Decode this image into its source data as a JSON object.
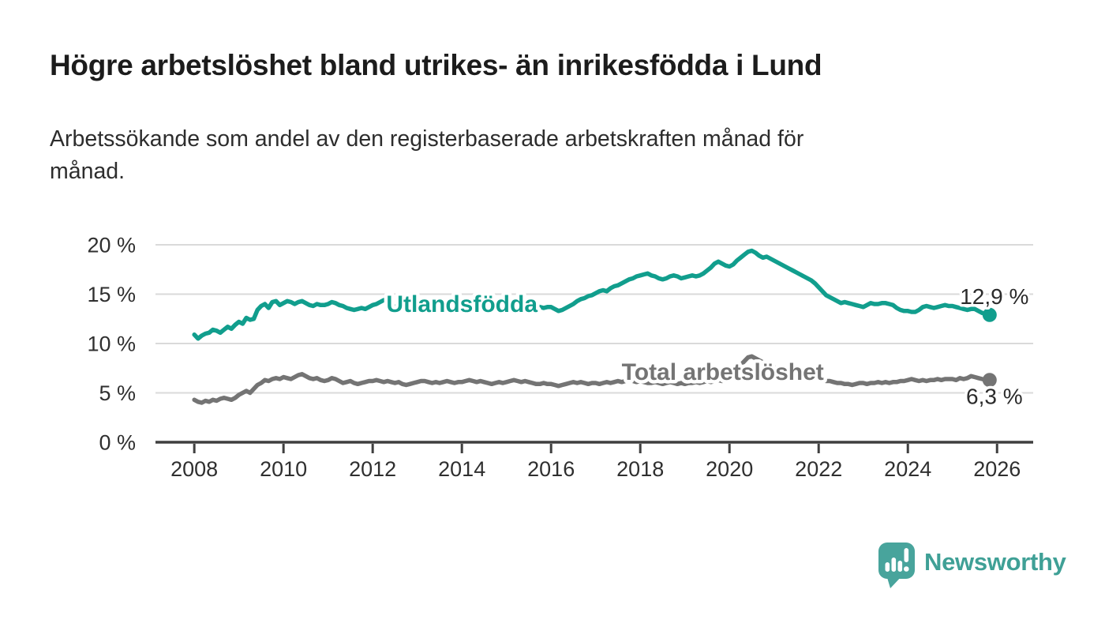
{
  "footer": {
    "brand": "Newsworthy",
    "brand_color": "#48a49c"
  },
  "chart_data": {
    "type": "line",
    "title": "Högre arbetslöshet bland utrikes- än inrikesfödda i Lund",
    "subtitle_lines": [
      "Arbetssökande som andel av den registerbaserade arbetskraften månad för",
      "månad."
    ],
    "grid": "horizontal",
    "legend_position": "inline-labels",
    "x_axis": {
      "range": [
        2007.13,
        2026.81
      ],
      "ticks": [
        2008,
        2010,
        2012,
        2014,
        2016,
        2018,
        2020,
        2022,
        2024,
        2026
      ]
    },
    "y_axis": {
      "range": [
        0,
        20.6
      ],
      "ticks": [
        0,
        5,
        10,
        15,
        20
      ],
      "suffix": " %"
    },
    "colors": {
      "gridline": "#dadada",
      "axis": "#3f3f3f",
      "tick_text": "#2f2f2f",
      "value_label_text": "#2b2b2b"
    },
    "series": [
      {
        "name": "Utlandsfödda",
        "color": "#119e8d",
        "start_year": 2008,
        "interval_months": 1,
        "end_value_label": "12,9 %",
        "end_label_offset": [
          6,
          -14
        ],
        "name_label_at": [
          2014.0,
          14.05
        ],
        "values": [
          10.9,
          10.5,
          10.8,
          11.0,
          11.1,
          11.4,
          11.3,
          11.1,
          11.4,
          11.7,
          11.5,
          11.9,
          12.2,
          12.0,
          12.6,
          12.4,
          12.5,
          13.4,
          13.8,
          14.0,
          13.6,
          14.2,
          14.3,
          13.9,
          14.1,
          14.3,
          14.2,
          14.0,
          14.2,
          14.3,
          14.1,
          13.9,
          13.8,
          14.0,
          13.9,
          13.9,
          14.0,
          14.2,
          14.1,
          13.9,
          13.8,
          13.6,
          13.5,
          13.4,
          13.5,
          13.6,
          13.5,
          13.7,
          13.9,
          14.0,
          14.2,
          14.4,
          14.3,
          14.1,
          13.6,
          13.5,
          13.4,
          13.5,
          13.4,
          13.5,
          13.6,
          13.7,
          13.8,
          13.9,
          13.8,
          13.7,
          13.6,
          13.5,
          13.6,
          13.7,
          13.6,
          13.5,
          13.8,
          13.9,
          14.0,
          13.9,
          13.8,
          13.7,
          13.8,
          13.7,
          13.6,
          13.7,
          13.8,
          13.7,
          13.8,
          13.9,
          14.0,
          13.9,
          13.8,
          13.9,
          13.8,
          13.7,
          13.8,
          13.7,
          13.6,
          13.7,
          13.7,
          13.5,
          13.3,
          13.4,
          13.6,
          13.8,
          14.0,
          14.3,
          14.5,
          14.6,
          14.8,
          14.9,
          15.1,
          15.3,
          15.4,
          15.3,
          15.6,
          15.8,
          15.9,
          16.1,
          16.3,
          16.5,
          16.6,
          16.8,
          16.9,
          17.0,
          17.1,
          16.9,
          16.8,
          16.6,
          16.5,
          16.6,
          16.8,
          16.9,
          16.8,
          16.6,
          16.7,
          16.8,
          16.9,
          16.8,
          16.9,
          17.1,
          17.4,
          17.7,
          18.1,
          18.3,
          18.1,
          17.9,
          17.8,
          18.0,
          18.4,
          18.7,
          19.0,
          19.3,
          19.4,
          19.2,
          18.9,
          18.7,
          18.8,
          18.6,
          18.4,
          18.2,
          18.0,
          17.8,
          17.6,
          17.4,
          17.2,
          17.0,
          16.8,
          16.6,
          16.4,
          16.1,
          15.7,
          15.3,
          14.9,
          14.7,
          14.5,
          14.3,
          14.1,
          14.2,
          14.1,
          14.0,
          13.9,
          13.8,
          13.7,
          13.9,
          14.1,
          14.0,
          14.0,
          14.1,
          14.1,
          14.0,
          13.9,
          13.6,
          13.4,
          13.3,
          13.3,
          13.2,
          13.2,
          13.4,
          13.7,
          13.8,
          13.7,
          13.6,
          13.7,
          13.8,
          13.9,
          13.8,
          13.8,
          13.7,
          13.6,
          13.5,
          13.4,
          13.5,
          13.5,
          13.3,
          13.1,
          13.0,
          12.9
        ]
      },
      {
        "name": "Total arbetslöshet",
        "color": "#747474",
        "start_year": 2008,
        "interval_months": 1,
        "end_value_label": "6,3 %",
        "end_label_offset": [
          6,
          30
        ],
        "name_label_at": [
          2019.85,
          7.15
        ],
        "values": [
          4.3,
          4.1,
          4.0,
          4.2,
          4.1,
          4.3,
          4.2,
          4.4,
          4.5,
          4.4,
          4.3,
          4.5,
          4.8,
          5.0,
          5.2,
          5.0,
          5.4,
          5.8,
          6.0,
          6.3,
          6.2,
          6.4,
          6.5,
          6.4,
          6.6,
          6.5,
          6.4,
          6.6,
          6.8,
          6.9,
          6.7,
          6.5,
          6.4,
          6.5,
          6.3,
          6.2,
          6.3,
          6.5,
          6.4,
          6.2,
          6.0,
          6.1,
          6.2,
          6.0,
          5.9,
          6.0,
          6.1,
          6.2,
          6.2,
          6.3,
          6.2,
          6.1,
          6.2,
          6.1,
          6.0,
          6.1,
          5.9,
          5.8,
          5.9,
          6.0,
          6.1,
          6.2,
          6.2,
          6.1,
          6.0,
          6.1,
          6.0,
          6.1,
          6.2,
          6.1,
          6.0,
          6.1,
          6.1,
          6.2,
          6.3,
          6.2,
          6.1,
          6.2,
          6.1,
          6.0,
          5.9,
          6.0,
          6.1,
          6.0,
          6.1,
          6.2,
          6.3,
          6.2,
          6.1,
          6.2,
          6.1,
          6.0,
          5.9,
          5.9,
          6.0,
          5.9,
          5.9,
          5.8,
          5.7,
          5.8,
          5.9,
          6.0,
          6.1,
          6.0,
          6.1,
          6.0,
          5.9,
          6.0,
          6.0,
          5.9,
          6.0,
          6.1,
          6.0,
          6.1,
          6.2,
          6.1,
          6.2,
          6.3,
          6.2,
          6.1,
          6.2,
          6.1,
          6.0,
          6.0,
          6.1,
          6.0,
          5.9,
          6.0,
          6.1,
          6.0,
          5.9,
          6.0,
          5.9,
          6.0,
          6.0,
          6.1,
          6.0,
          6.1,
          6.2,
          6.1,
          6.2,
          6.3,
          6.2,
          6.4,
          6.5,
          6.7,
          7.2,
          7.8,
          8.2,
          8.6,
          8.7,
          8.5,
          8.3,
          8.1,
          7.9,
          7.7,
          7.6,
          7.4,
          7.3,
          7.1,
          7.0,
          6.9,
          6.8,
          6.7,
          6.6,
          6.5,
          6.4,
          6.4,
          6.4,
          6.3,
          6.2,
          6.2,
          6.1,
          6.0,
          6.0,
          5.9,
          5.9,
          5.8,
          5.9,
          6.0,
          6.0,
          5.9,
          6.0,
          6.0,
          6.1,
          6.0,
          6.1,
          6.0,
          6.1,
          6.1,
          6.2,
          6.2,
          6.3,
          6.4,
          6.3,
          6.2,
          6.3,
          6.2,
          6.3,
          6.3,
          6.4,
          6.3,
          6.4,
          6.4,
          6.4,
          6.3,
          6.5,
          6.4,
          6.5,
          6.7,
          6.6,
          6.5,
          6.4,
          6.3,
          6.3
        ]
      }
    ]
  }
}
